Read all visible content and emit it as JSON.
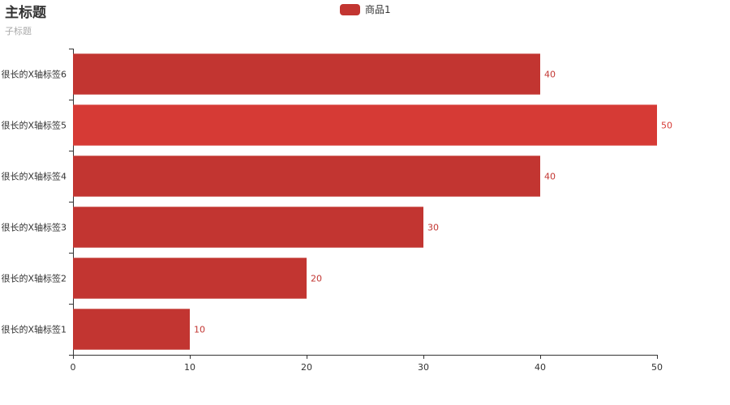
{
  "chart_data": {
    "type": "bar",
    "orientation": "horizontal",
    "title": "主标题",
    "subtitle": "子标题",
    "categories": [
      "很长的X轴标签1",
      "很长的X轴标签2",
      "很长的X轴标签3",
      "很长的X轴标签4",
      "很长的X轴标签5",
      "很长的X轴标签6"
    ],
    "series": [
      {
        "name": "商品1",
        "values": [
          10,
          20,
          30,
          40,
          50,
          40
        ]
      }
    ],
    "xlim": [
      0,
      50
    ],
    "x_ticks": [
      0,
      10,
      20,
      30,
      40,
      50
    ],
    "grid": false,
    "legend_position": "top-center",
    "data_labels": "right",
    "colors": {
      "bar": "#c23531",
      "bar_highlight": "#d63a35",
      "axis": "#333333"
    }
  }
}
